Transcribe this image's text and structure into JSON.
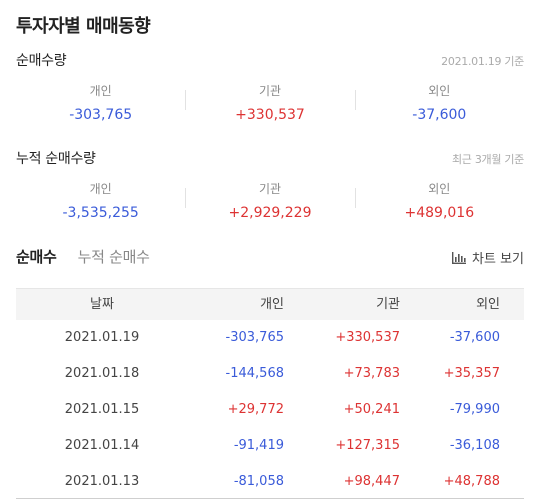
{
  "title": "투자자별 매매동향",
  "net_volume": {
    "label": "순매수량",
    "note": "2021.01.19 기준",
    "items": [
      {
        "key": "개인",
        "value": "-303,765",
        "sign": "neg"
      },
      {
        "key": "기관",
        "value": "+330,537",
        "sign": "pos"
      },
      {
        "key": "외인",
        "value": "-37,600",
        "sign": "neg"
      }
    ]
  },
  "cumulative": {
    "label": "누적 순매수량",
    "note": "최근 3개월 기준",
    "items": [
      {
        "key": "개인",
        "value": "-3,535,255",
        "sign": "neg"
      },
      {
        "key": "기관",
        "value": "+2,929,229",
        "sign": "pos"
      },
      {
        "key": "외인",
        "value": "+489,016",
        "sign": "pos"
      }
    ]
  },
  "tabs": {
    "net": "순매수",
    "cumulative": "누적 순매수",
    "chart_button": "차트 보기"
  },
  "table": {
    "headers": {
      "date": "날짜",
      "individual": "개인",
      "institution": "기관",
      "foreign": "외인"
    },
    "rows": [
      {
        "date": "2021.01.19",
        "individual": "-303,765",
        "institution": "+330,537",
        "foreign": "-37,600"
      },
      {
        "date": "2021.01.18",
        "individual": "-144,568",
        "institution": "+73,783",
        "foreign": "+35,357"
      },
      {
        "date": "2021.01.15",
        "individual": "+29,772",
        "institution": "+50,241",
        "foreign": "-79,990"
      },
      {
        "date": "2021.01.14",
        "individual": "-91,419",
        "institution": "+127,315",
        "foreign": "-36,108"
      },
      {
        "date": "2021.01.13",
        "individual": "-81,058",
        "institution": "+98,447",
        "foreign": "+48,788"
      }
    ]
  },
  "colors": {
    "negative": "#3a5bd9",
    "positive": "#dd3333"
  }
}
